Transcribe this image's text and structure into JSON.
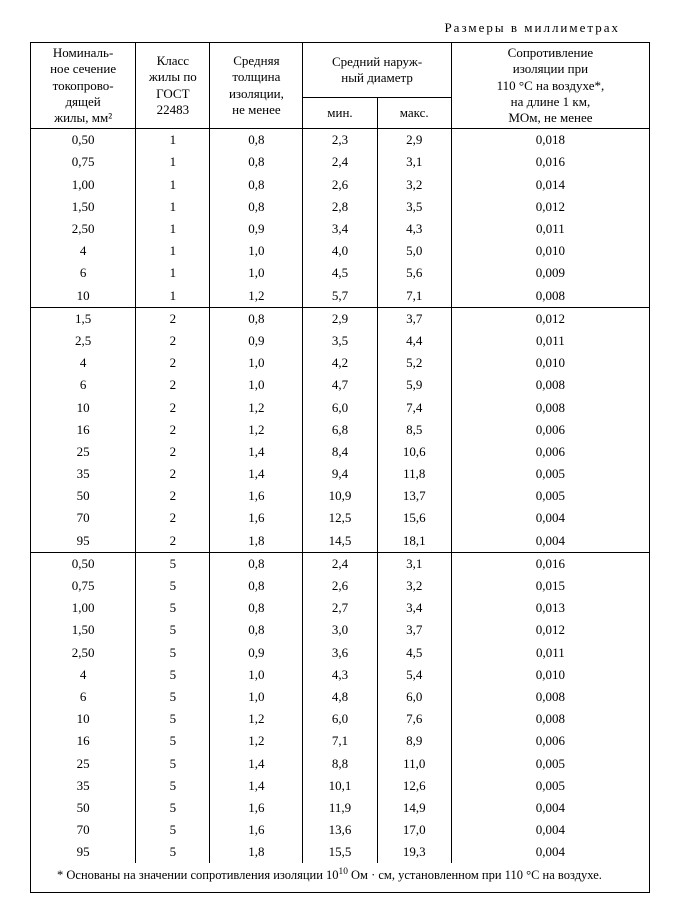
{
  "caption": "Размеры   в  миллиметрах",
  "headers": {
    "c1_l1": "Номиналь-",
    "c1_l2": "ное сечение",
    "c1_l3": "токопрово-",
    "c1_l4": "дящей",
    "c1_l5": "жилы, мм²",
    "c2_l1": "Класс",
    "c2_l2": "жилы по",
    "c2_l3": "ГОСТ",
    "c2_l4": "22483",
    "c3_l1": "Средняя",
    "c3_l2": "толщина",
    "c3_l3": "изоляции,",
    "c3_l4": "не менее",
    "c45_l1": "Средний наруж-",
    "c45_l2": "ный диаметр",
    "c4_sub": "мин.",
    "c5_sub": "макс.",
    "c6_l1": "Сопротивление",
    "c6_l2": "изоляции при",
    "c6_l3": "110 °С на воздухе*,",
    "c6_l4": "на длине 1 км,",
    "c6_l5": "МОм, не менее"
  },
  "groups": [
    {
      "rows": [
        [
          "0,50",
          "1",
          "0,8",
          "2,3",
          "2,9",
          "0,018"
        ],
        [
          "0,75",
          "1",
          "0,8",
          "2,4",
          "3,1",
          "0,016"
        ],
        [
          "1,00",
          "1",
          "0,8",
          "2,6",
          "3,2",
          "0,014"
        ],
        [
          "1,50",
          "1",
          "0,8",
          "2,8",
          "3,5",
          "0,012"
        ],
        [
          "2,50",
          "1",
          "0,9",
          "3,4",
          "4,3",
          "0,011"
        ],
        [
          "4",
          "1",
          "1,0",
          "4,0",
          "5,0",
          "0,010"
        ],
        [
          "6",
          "1",
          "1,0",
          "4,5",
          "5,6",
          "0,009"
        ],
        [
          "10",
          "1",
          "1,2",
          "5,7",
          "7,1",
          "0,008"
        ]
      ]
    },
    {
      "rows": [
        [
          "1,5",
          "2",
          "0,8",
          "2,9",
          "3,7",
          "0,012"
        ],
        [
          "2,5",
          "2",
          "0,9",
          "3,5",
          "4,4",
          "0,011"
        ],
        [
          "4",
          "2",
          "1,0",
          "4,2",
          "5,2",
          "0,010"
        ],
        [
          "6",
          "2",
          "1,0",
          "4,7",
          "5,9",
          "0,008"
        ],
        [
          "10",
          "2",
          "1,2",
          "6,0",
          "7,4",
          "0,008"
        ],
        [
          "16",
          "2",
          "1,2",
          "6,8",
          "8,5",
          "0,006"
        ],
        [
          "25",
          "2",
          "1,4",
          "8,4",
          "10,6",
          "0,006"
        ],
        [
          "35",
          "2",
          "1,4",
          "9,4",
          "11,8",
          "0,005"
        ],
        [
          "50",
          "2",
          "1,6",
          "10,9",
          "13,7",
          "0,005"
        ],
        [
          "70",
          "2",
          "1,6",
          "12,5",
          "15,6",
          "0,004"
        ],
        [
          "95",
          "2",
          "1,8",
          "14,5",
          "18,1",
          "0,004"
        ]
      ]
    },
    {
      "rows": [
        [
          "0,50",
          "5",
          "0,8",
          "2,4",
          "3,1",
          "0,016"
        ],
        [
          "0,75",
          "5",
          "0,8",
          "2,6",
          "3,2",
          "0,015"
        ],
        [
          "1,00",
          "5",
          "0,8",
          "2,7",
          "3,4",
          "0,013"
        ],
        [
          "1,50",
          "5",
          "0,8",
          "3,0",
          "3,7",
          "0,012"
        ],
        [
          "2,50",
          "5",
          "0,9",
          "3,6",
          "4,5",
          "0,011"
        ],
        [
          "4",
          "5",
          "1,0",
          "4,3",
          "5,4",
          "0,010"
        ],
        [
          "6",
          "5",
          "1,0",
          "4,8",
          "6,0",
          "0,008"
        ],
        [
          "10",
          "5",
          "1,2",
          "6,0",
          "7,6",
          "0,008"
        ],
        [
          "16",
          "5",
          "1,2",
          "7,1",
          "8,9",
          "0,006"
        ],
        [
          "25",
          "5",
          "1,4",
          "8,8",
          "11,0",
          "0,005"
        ],
        [
          "35",
          "5",
          "1,4",
          "10,1",
          "12,6",
          "0,005"
        ],
        [
          "50",
          "5",
          "1,6",
          "11,9",
          "14,9",
          "0,004"
        ],
        [
          "70",
          "5",
          "1,6",
          "13,6",
          "17,0",
          "0,004"
        ],
        [
          "95",
          "5",
          "1,8",
          "15,5",
          "19,3",
          "0,004"
        ]
      ]
    }
  ],
  "footnote_pre": "* Основаны на значении сопротивления изоляции 10",
  "footnote_sup": "10",
  "footnote_post": " Ом · см, установленном при 110 °С на  воздухе.",
  "col_widths": [
    "17%",
    "12%",
    "15%",
    "12%",
    "12%",
    "32%"
  ],
  "colors": {
    "background": "#ffffff",
    "text": "#000000",
    "border": "#000000"
  }
}
